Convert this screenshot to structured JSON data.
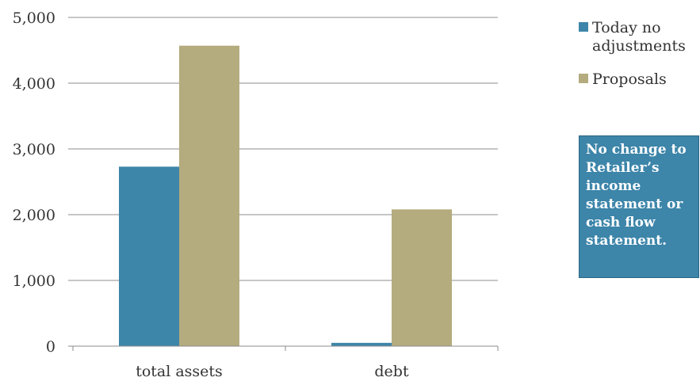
{
  "chart_data": {
    "type": "bar",
    "categories": [
      "total assets",
      "debt"
    ],
    "series": [
      {
        "name": "Today no adjustments",
        "values": [
          2730,
          50
        ]
      },
      {
        "name": "Proposals",
        "values": [
          4570,
          2080
        ]
      }
    ],
    "ylim": [
      0,
      5000
    ],
    "yticks": [
      0,
      1000,
      2000,
      3000,
      4000,
      5000
    ],
    "ytick_labels": [
      "0",
      "1,000",
      "2,000",
      "3,000",
      "4,000",
      "5,000"
    ],
    "xlabel": "",
    "ylabel": "",
    "grid": true,
    "legend_position": "right",
    "legend_labels": [
      [
        "Today no",
        "adjustments"
      ],
      [
        "Proposals"
      ]
    ],
    "colors": [
      "#3d85a9",
      "#b4ab7e"
    ]
  },
  "callout": {
    "text": "No change to Retailer’s income statement or cash flow statement.",
    "background": "#3d85a9",
    "border": "#2a6785"
  },
  "colors": {
    "gridline": "#8c8c8c",
    "axis": "#8c8c8c"
  }
}
